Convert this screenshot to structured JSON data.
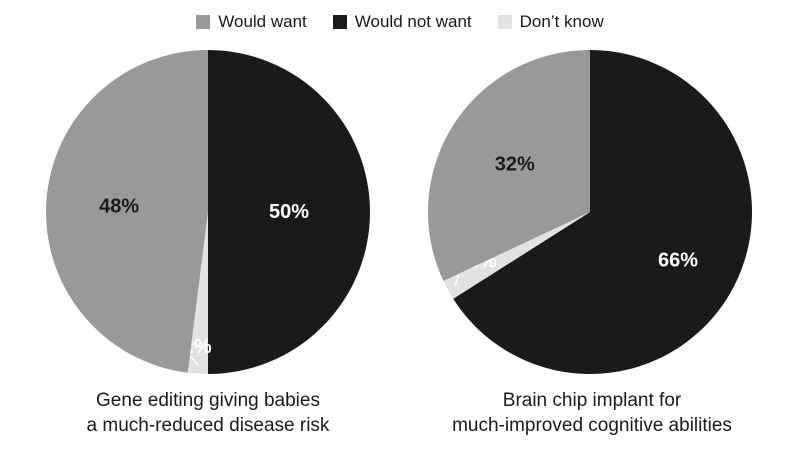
{
  "legend": [
    {
      "label": "Would want",
      "color": "#999999"
    },
    {
      "label": "Would not want",
      "color": "#1a1a1a"
    },
    {
      "label": "Don’t know",
      "color": "#e2e2e2"
    }
  ],
  "chart_data": [
    {
      "type": "pie",
      "title_lines": [
        "Gene editing giving babies",
        "a much-reduced disease risk"
      ],
      "slices": [
        {
          "label": "Would not want",
          "value": 50,
          "text": "50%",
          "color": "#1a1a1a",
          "label_color": "#ffffff"
        },
        {
          "label": "Don’t know",
          "value": 2,
          "text": "2%",
          "color": "#e2e2e2",
          "label_color": "#1a1a1a"
        },
        {
          "label": "Would want",
          "value": 48,
          "text": "48%",
          "color": "#999999",
          "label_color": "#1a1a1a"
        }
      ]
    },
    {
      "type": "pie",
      "title_lines": [
        "Brain chip implant for",
        "much-improved cognitive abilities"
      ],
      "slices": [
        {
          "label": "Would not want",
          "value": 66,
          "text": "66%",
          "color": "#1a1a1a",
          "label_color": "#ffffff"
        },
        {
          "label": "Don’t know",
          "value": 2,
          "text": "2%",
          "color": "#e2e2e2",
          "label_color": "#1a1a1a"
        },
        {
          "label": "Would want",
          "value": 32,
          "text": "32%",
          "color": "#999999",
          "label_color": "#1a1a1a"
        }
      ]
    }
  ]
}
